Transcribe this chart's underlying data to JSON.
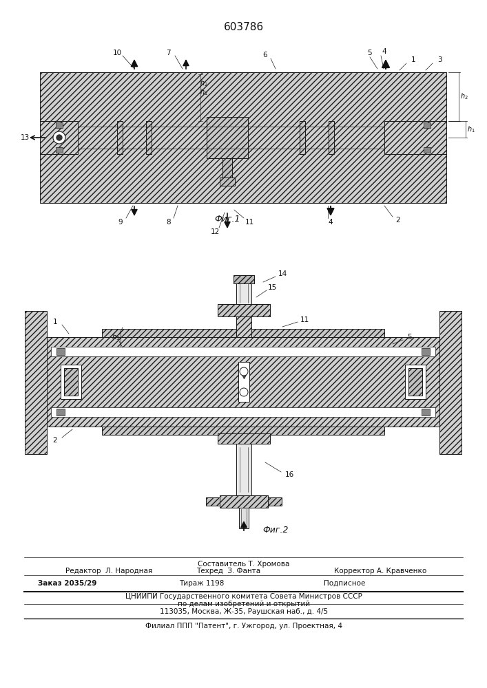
{
  "patent_number": "603786",
  "fig1_label": "Фиг.1",
  "fig2_label": "Фиг.2",
  "footer_line1": "Составитель Т. Хромова",
  "footer_line2_left": "Редактор  Л. Народная",
  "footer_line2_mid": "Техред  З. Фанта",
  "footer_line2_right": "Корректор А. Кравченко",
  "footer_line3_left": "Заказ 2035/29",
  "footer_line3_mid": "Тираж 1198",
  "footer_line3_right": "Подписное",
  "footer_line4": "ЦНИИПИ Государственного комитета Совета Министров СССР",
  "footer_line5": "по делам изобретений и открытий",
  "footer_line6": "113035, Москва, Ж-35, Раушская наб., д. 4/5",
  "footer_line7": "Филиал ППП \"Патент\", г. Ужгород, ул. Проектная, 4"
}
